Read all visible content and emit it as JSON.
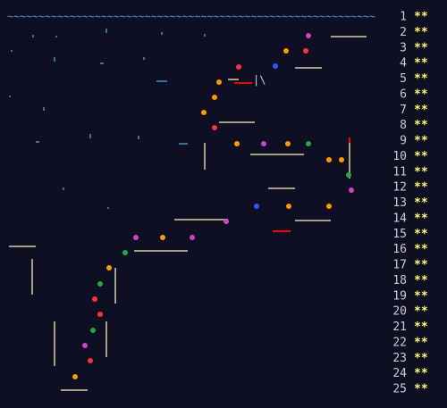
{
  "header_wave": "~~~~~~~~~~~~~~~~~~~~~~~~~~~~~~~~~~~~~~~~~~~~~~~~~~~~~~~~~~~",
  "days": [
    {
      "day": "1",
      "stars": "**"
    },
    {
      "day": "2",
      "stars": "**"
    },
    {
      "day": "3",
      "stars": "**"
    },
    {
      "day": "4",
      "stars": "**"
    },
    {
      "day": "5",
      "stars": "**"
    },
    {
      "day": "6",
      "stars": "**"
    },
    {
      "day": "7",
      "stars": "**"
    },
    {
      "day": "8",
      "stars": "**"
    },
    {
      "day": "9",
      "stars": "**"
    },
    {
      "day": "10",
      "stars": "**"
    },
    {
      "day": "11",
      "stars": "**"
    },
    {
      "day": "12",
      "stars": "**"
    },
    {
      "day": "13",
      "stars": "**"
    },
    {
      "day": "14",
      "stars": "**"
    },
    {
      "day": "15",
      "stars": "**"
    },
    {
      "day": "16",
      "stars": "**"
    },
    {
      "day": "17",
      "stars": "**"
    },
    {
      "day": "18",
      "stars": "**"
    },
    {
      "day": "19",
      "stars": "**"
    },
    {
      "day": "20",
      "stars": "**"
    },
    {
      "day": "21",
      "stars": "**"
    },
    {
      "day": "22",
      "stars": "**"
    },
    {
      "day": "23",
      "stars": "**"
    },
    {
      "day": "24",
      "stars": "**"
    },
    {
      "day": "25",
      "stars": "**"
    }
  ]
}
